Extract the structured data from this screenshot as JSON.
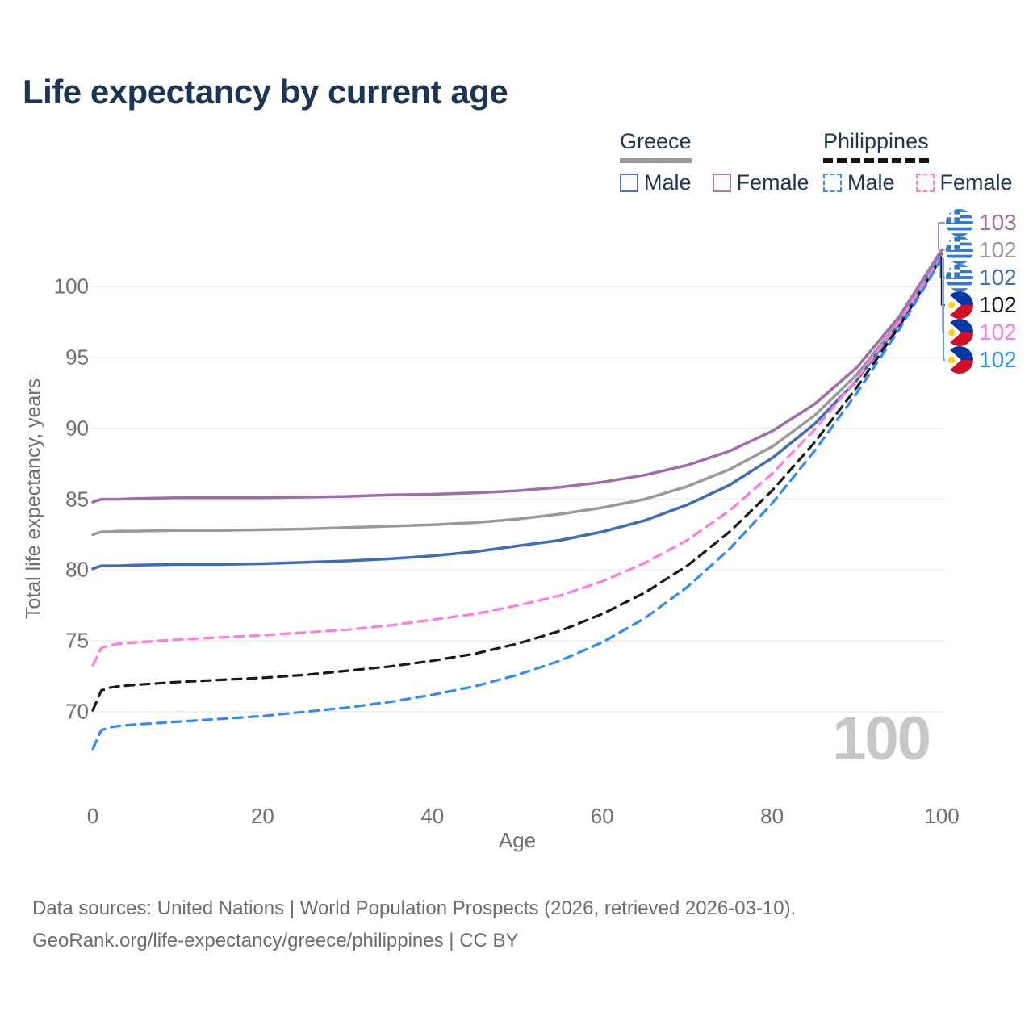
{
  "title": "Life expectancy by current age",
  "watermark": "100",
  "legend": {
    "groups": [
      {
        "name": "Greece",
        "underline_style": "solid",
        "underline_color": "#9a9a9a",
        "items": [
          {
            "label": "Male",
            "color": "#4a76b9",
            "dashed": false
          },
          {
            "label": "Female",
            "color": "#b277b2",
            "dashed": false
          }
        ]
      },
      {
        "name": "Philippines",
        "underline_style": "dashed",
        "underline_color": "#141414",
        "items": [
          {
            "label": "Male",
            "color": "#3a8ef6",
            "dashed": true
          },
          {
            "label": "Female",
            "color": "#ff7ade",
            "dashed": true
          }
        ]
      }
    ]
  },
  "footer": {
    "line1": "Data sources: United Nations | World Population Prospects (2026, retrieved 2026-03-10).",
    "line2": "GeoRank.org/life-expectancy/greece/philippines | CC BY"
  },
  "chart_data": {
    "type": "line",
    "title": "Life expectancy by current age",
    "xlabel": "Age",
    "ylabel": "Total life expectancy, years",
    "x_ticks": [
      0,
      20,
      40,
      60,
      80,
      100
    ],
    "y_ticks": [
      70,
      75,
      80,
      85,
      90,
      95,
      100
    ],
    "xlim": [
      0,
      100
    ],
    "ylim": [
      66,
      104
    ],
    "grid": "horizontal",
    "legend_position": "top-right",
    "x": [
      0,
      1,
      2,
      3,
      5,
      10,
      15,
      20,
      25,
      30,
      35,
      40,
      45,
      50,
      55,
      60,
      65,
      70,
      75,
      80,
      85,
      90,
      95,
      100
    ],
    "series": [
      {
        "name": "Greece Female",
        "country": "greece",
        "sex": "female",
        "color": "#a06bad",
        "dashed": false,
        "end_label": "103",
        "values": [
          84.8,
          85.0,
          85.0,
          85.0,
          85.05,
          85.1,
          85.1,
          85.1,
          85.15,
          85.2,
          85.3,
          85.35,
          85.45,
          85.6,
          85.85,
          86.2,
          86.7,
          87.4,
          88.4,
          89.8,
          91.7,
          94.3,
          97.9,
          102.6
        ]
      },
      {
        "name": "Greece Both sexes",
        "country": "greece",
        "sex": "total",
        "color": "#9a9a9a",
        "dashed": false,
        "end_label": "102",
        "values": [
          82.5,
          82.7,
          82.7,
          82.75,
          82.75,
          82.8,
          82.8,
          82.85,
          82.9,
          83.0,
          83.1,
          83.2,
          83.35,
          83.6,
          83.95,
          84.4,
          85.0,
          85.9,
          87.1,
          88.7,
          90.9,
          93.8,
          97.6,
          102.4
        ]
      },
      {
        "name": "Greece Male",
        "country": "greece",
        "sex": "male",
        "color": "#3e6db5",
        "dashed": false,
        "end_label": "102",
        "values": [
          80.1,
          80.3,
          80.3,
          80.3,
          80.35,
          80.4,
          80.4,
          80.45,
          80.55,
          80.65,
          80.8,
          81.0,
          81.3,
          81.7,
          82.1,
          82.7,
          83.5,
          84.6,
          86.0,
          87.9,
          90.3,
          93.4,
          97.4,
          102.3
        ]
      },
      {
        "name": "Philippines Both sexes",
        "country": "philippines",
        "sex": "total",
        "color": "#1a1a1a",
        "dashed": true,
        "end_label": "102",
        "values": [
          70.1,
          71.5,
          71.7,
          71.8,
          71.9,
          72.1,
          72.25,
          72.4,
          72.6,
          72.9,
          73.2,
          73.6,
          74.1,
          74.8,
          75.7,
          76.9,
          78.4,
          80.3,
          82.7,
          85.6,
          89.0,
          92.9,
          97.2,
          102.1
        ]
      },
      {
        "name": "Philippines Female",
        "country": "philippines",
        "sex": "female",
        "color": "#ff7bdf",
        "dashed": true,
        "end_label": "102",
        "values": [
          73.3,
          74.5,
          74.7,
          74.8,
          74.9,
          75.1,
          75.25,
          75.4,
          75.6,
          75.8,
          76.1,
          76.5,
          76.9,
          77.5,
          78.2,
          79.2,
          80.5,
          82.1,
          84.2,
          86.8,
          89.9,
          93.5,
          97.5,
          102.2
        ]
      },
      {
        "name": "Philippines Male",
        "country": "philippines",
        "sex": "male",
        "color": "#2f8bf5",
        "dashed": true,
        "end_label": "102",
        "values": [
          67.4,
          68.7,
          68.9,
          69.0,
          69.1,
          69.3,
          69.5,
          69.7,
          70.0,
          70.3,
          70.7,
          71.2,
          71.8,
          72.6,
          73.6,
          74.9,
          76.6,
          78.8,
          81.5,
          84.7,
          88.4,
          92.5,
          97.0,
          102.0
        ]
      }
    ]
  }
}
